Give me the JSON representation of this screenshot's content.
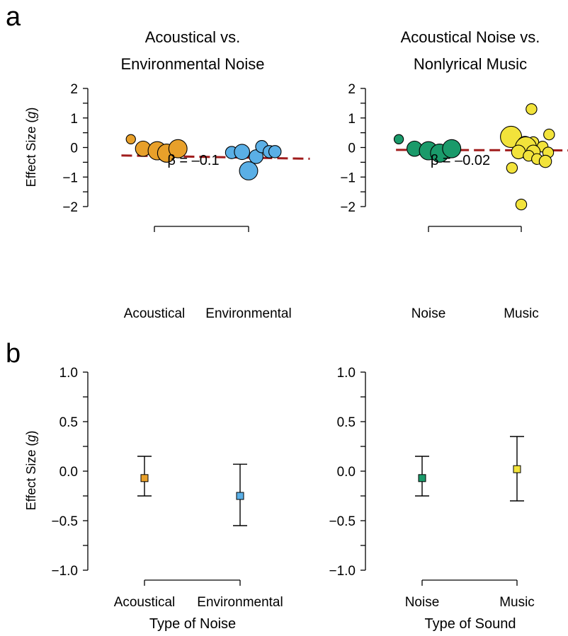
{
  "panels": {
    "a": "a",
    "b": "b"
  },
  "colors": {
    "acoustical": "#E8A02A",
    "environmental": "#5AAFE6",
    "noise": "#1A9A6A",
    "music": "#F2E33B",
    "regression": "#A01C1C"
  },
  "chart_data": [
    {
      "type": "scatter",
      "title": "Acoustical vs.\nEnvironmental Noise",
      "ylabel": "Effect Size (g)",
      "xlabel": "",
      "categories": [
        "Acoustical",
        "Environmental"
      ],
      "yticks": [
        "2",
        "1",
        "0",
        "−1",
        "−2"
      ],
      "ylim": [
        -2.2,
        2.2
      ],
      "annotation": "β = –0.1",
      "regression": {
        "x_start": 0.65,
        "y_start": -0.27,
        "x_end": 2.65,
        "y_end": -0.38
      },
      "series": [
        {
          "category": "Acoustical",
          "color_key": "acoustical",
          "points": [
            {
              "x": 0.75,
              "y": 0.28,
              "w": 1
            },
            {
              "x": 0.88,
              "y": -0.04,
              "w": 3
            },
            {
              "x": 1.03,
              "y": -0.11,
              "w": 4
            },
            {
              "x": 1.13,
              "y": -0.19,
              "w": 4
            },
            {
              "x": 1.25,
              "y": -0.04,
              "w": 4
            }
          ]
        },
        {
          "category": "Environmental",
          "color_key": "environmental",
          "points": [
            {
              "x": 1.82,
              "y": -0.17,
              "w": 2
            },
            {
              "x": 1.93,
              "y": -0.15,
              "w": 3
            },
            {
              "x": 2.0,
              "y": -0.79,
              "w": 4
            },
            {
              "x": 2.08,
              "y": -0.31,
              "w": 2.5
            },
            {
              "x": 2.14,
              "y": 0.03,
              "w": 2
            },
            {
              "x": 2.22,
              "y": -0.14,
              "w": 2
            },
            {
              "x": 2.28,
              "y": -0.14,
              "w": 2
            }
          ]
        }
      ]
    },
    {
      "type": "scatter",
      "title": "Acoustical Noise vs.\nNonlyrical Music",
      "ylabel": "",
      "xlabel": "",
      "categories": [
        "Noise",
        "Music"
      ],
      "yticks": [
        "2",
        "1",
        "0",
        "−1",
        "−2"
      ],
      "ylim": [
        -2.2,
        2.2
      ],
      "annotation": "β = –0.02",
      "regression": {
        "x_start": 0.65,
        "y_start": -0.08,
        "x_end": 2.65,
        "y_end": -0.1
      },
      "series": [
        {
          "category": "Noise",
          "color_key": "noise",
          "points": [
            {
              "x": 0.68,
              "y": 0.28,
              "w": 1
            },
            {
              "x": 0.85,
              "y": -0.04,
              "w": 3
            },
            {
              "x": 1.0,
              "y": -0.11,
              "w": 4
            },
            {
              "x": 1.12,
              "y": -0.19,
              "w": 4
            },
            {
              "x": 1.25,
              "y": -0.04,
              "w": 4
            }
          ]
        },
        {
          "category": "Music",
          "color_key": "music",
          "points": [
            {
              "x": 2.11,
              "y": 1.3,
              "w": 1.5
            },
            {
              "x": 1.89,
              "y": 0.36,
              "w": 5
            },
            {
              "x": 2.3,
              "y": 0.44,
              "w": 1.5
            },
            {
              "x": 2.13,
              "y": 0.18,
              "w": 1.5
            },
            {
              "x": 2.04,
              "y": 0.12,
              "w": 3
            },
            {
              "x": 2.23,
              "y": 0.03,
              "w": 1.5
            },
            {
              "x": 2.05,
              "y": 0.0,
              "w": 5
            },
            {
              "x": 1.97,
              "y": -0.15,
              "w": 2.5
            },
            {
              "x": 2.13,
              "y": -0.15,
              "w": 2.5
            },
            {
              "x": 2.29,
              "y": -0.17,
              "w": 1.5
            },
            {
              "x": 2.08,
              "y": -0.28,
              "w": 1.5
            },
            {
              "x": 2.17,
              "y": -0.39,
              "w": 1.5
            },
            {
              "x": 2.26,
              "y": -0.47,
              "w": 2
            },
            {
              "x": 1.9,
              "y": -0.69,
              "w": 1.5
            },
            {
              "x": 2.0,
              "y": -1.93,
              "w": 1.5
            }
          ]
        }
      ]
    },
    {
      "type": "scatter",
      "subtype": "point-with-error-bars",
      "title": "",
      "ylabel": "Effect Size (g)",
      "xlabel": "Type of Noise",
      "categories": [
        "Acoustical",
        "Environmental"
      ],
      "yticks": [
        "1.0",
        "0.5",
        "0.0",
        "−0.5",
        "−1.0"
      ],
      "ylim": [
        -1.1,
        1.1
      ],
      "points": [
        {
          "category": "Acoustical",
          "y": -0.07,
          "lower": -0.25,
          "upper": 0.15,
          "color_key": "acoustical"
        },
        {
          "category": "Environmental",
          "y": -0.25,
          "lower": -0.55,
          "upper": 0.07,
          "color_key": "environmental"
        }
      ]
    },
    {
      "type": "scatter",
      "subtype": "point-with-error-bars",
      "title": "",
      "ylabel": "",
      "xlabel": "Type of Sound",
      "categories": [
        "Noise",
        "Music"
      ],
      "yticks": [
        "1.0",
        "0.5",
        "0.0",
        "−0.5",
        "−1.0"
      ],
      "ylim": [
        -1.1,
        1.1
      ],
      "points": [
        {
          "category": "Noise",
          "y": -0.07,
          "lower": -0.25,
          "upper": 0.15,
          "color_key": "noise"
        },
        {
          "category": "Music",
          "y": 0.02,
          "lower": -0.3,
          "upper": 0.35,
          "color_key": "music"
        }
      ]
    }
  ]
}
